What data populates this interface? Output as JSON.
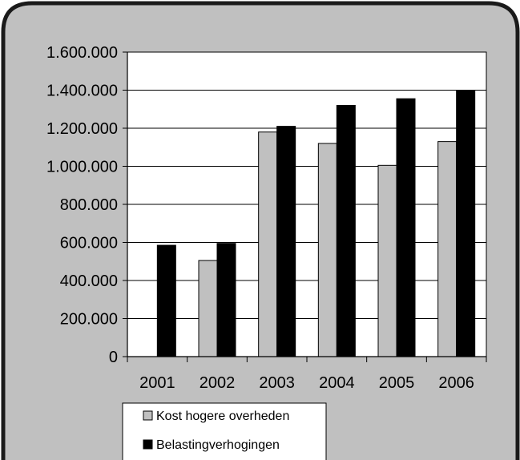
{
  "chart_data": {
    "type": "bar",
    "categories": [
      "2001",
      "2002",
      "2003",
      "2004",
      "2005",
      "2006"
    ],
    "series": [
      {
        "name": "Kost hogere overheden",
        "values": [
          0,
          505000,
          1180000,
          1120000,
          1005000,
          1130000
        ]
      },
      {
        "name": "Belastingverhogingen",
        "values": [
          585000,
          595000,
          1210000,
          1320000,
          1355000,
          1400000
        ]
      }
    ],
    "y_tick_labels": [
      "0",
      "200.000",
      "400.000",
      "600.000",
      "800.000",
      "1.000.000",
      "1.200.000",
      "1.400.000",
      "1.600.000"
    ],
    "y_ticks": [
      0,
      200000,
      400000,
      600000,
      800000,
      1000000,
      1200000,
      1400000,
      1600000
    ],
    "ylim": [
      0,
      1600000
    ],
    "grid": true,
    "legend_position": "bottom",
    "colors": {
      "series_0": "#c0c0c0",
      "series_1": "#000000",
      "plot_background": "#ffffff",
      "chart_background": "#c0c0c0",
      "frame_border": "#1a1a1a"
    }
  }
}
